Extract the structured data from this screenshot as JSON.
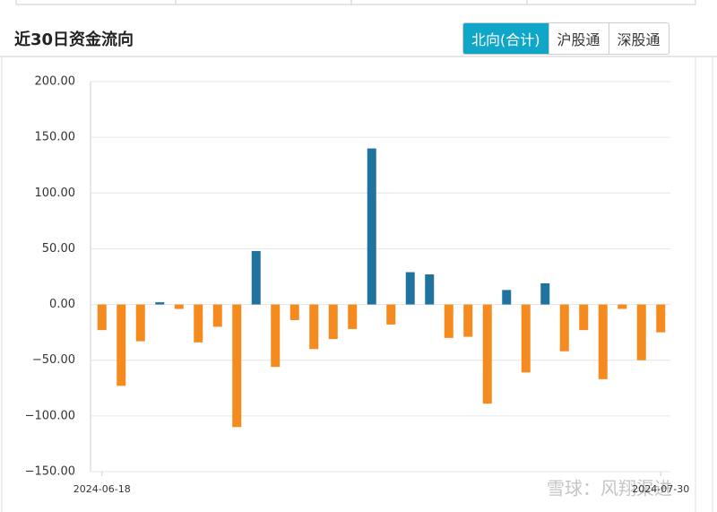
{
  "header": {
    "title": "近30日资金流向",
    "tabs": [
      "北向(合计)",
      "沪股通",
      "深股通"
    ],
    "active_tab": 0
  },
  "watermark": "雪球：风翔渠进",
  "chart_data": {
    "type": "bar",
    "categories": [
      "2024-06-18",
      null,
      null,
      null,
      null,
      null,
      null,
      null,
      null,
      null,
      null,
      null,
      null,
      null,
      null,
      null,
      null,
      null,
      null,
      null,
      null,
      null,
      null,
      null,
      null,
      null,
      null,
      null,
      null,
      "2024-07-30"
    ],
    "values": [
      -23,
      -73,
      -33,
      2,
      -4,
      -34,
      -20,
      -110,
      48,
      -56,
      -14,
      -40,
      -31,
      -22,
      140,
      -18,
      29,
      27,
      -30,
      -29,
      -89,
      13,
      -61,
      19,
      -42,
      -23,
      -67,
      -4,
      -50,
      -25
    ],
    "color_positive": "#21739f",
    "color_negative": "#f58a1f",
    "ylim": [
      -150,
      200
    ],
    "yticks": [
      {
        "value": -150,
        "label": "−150.00"
      },
      {
        "value": -100,
        "label": "−100.00"
      },
      {
        "value": -50,
        "label": "−50.00"
      },
      {
        "value": 0,
        "label": "0.00"
      },
      {
        "value": 50,
        "label": "50.00"
      },
      {
        "value": 100,
        "label": "100.00"
      },
      {
        "value": 150,
        "label": "150.00"
      },
      {
        "value": 200,
        "label": "200.00"
      }
    ],
    "grid": true
  }
}
